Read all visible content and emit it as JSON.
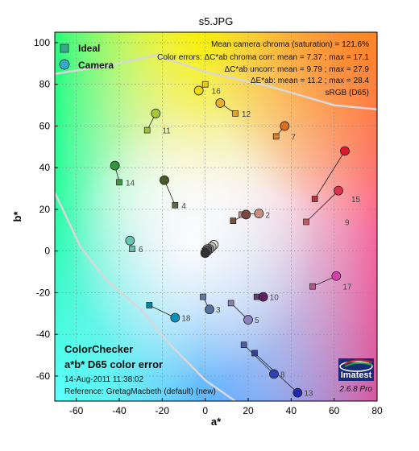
{
  "chart_data": {
    "type": "scatter",
    "title": "s5.JPG",
    "xlabel": "a*",
    "ylabel": "b*",
    "xlim": [
      -70,
      80
    ],
    "ylim": [
      -72,
      105
    ],
    "xticks": [
      -60,
      -40,
      -20,
      0,
      20,
      40,
      60,
      80
    ],
    "yticks": [
      -60,
      -40,
      -20,
      0,
      20,
      40,
      60,
      80,
      100
    ],
    "grid": true,
    "legend": [
      {
        "name": "Ideal",
        "marker": "square"
      },
      {
        "name": "Camera",
        "marker": "circle"
      }
    ],
    "annotations": {
      "line1": "Mean camera chroma (saturation) = 121.6%",
      "line2": "Color errors:  ΔC*ab chroma corr:  mean = 7.37 ;  max = 17.1",
      "line3": "ΔC*ab uncorr:  mean = 9.79 ;  max = 27.9",
      "line4": "ΔE*ab:  mean = 11.2 ;  max = 28.4",
      "line5": "sRGB (D65)"
    },
    "footer": {
      "title": "ColorChecker",
      "subtitle": "a*b* D65 color error",
      "date": "14-Aug-2011 11:38:02",
      "reference": "Reference:  GretagMacbeth (default) (new)"
    },
    "logo_text": "Imatest",
    "version": "2.6.8  Pro",
    "patches": [
      {
        "id": "1",
        "label": "",
        "ideal": [
          13,
          14.5
        ],
        "camera": [
          19,
          17.5
        ],
        "ideal_color": "#735244",
        "camera_color": "#7a4a40"
      },
      {
        "id": "2",
        "label": "2",
        "ideal": [
          17,
          17.5
        ],
        "camera": [
          25,
          18
        ],
        "ideal_color": "#c29682",
        "camera_color": "#c89080"
      },
      {
        "id": "3",
        "label": "3",
        "ideal": [
          -1,
          -22
        ],
        "camera": [
          2,
          -28
        ],
        "ideal_color": "#627a9d",
        "camera_color": "#5070a0"
      },
      {
        "id": "4",
        "label": "4",
        "ideal": [
          -14,
          22
        ],
        "camera": [
          -19,
          34
        ],
        "ideal_color": "#576c43",
        "camera_color": "#485a25"
      },
      {
        "id": "5",
        "label": "5",
        "ideal": [
          12,
          -25
        ],
        "camera": [
          20,
          -33
        ],
        "ideal_color": "#8580b1",
        "camera_color": "#8c80c0"
      },
      {
        "id": "6",
        "label": "6",
        "ideal": [
          -34,
          1
        ],
        "camera": [
          -35,
          5
        ],
        "ideal_color": "#67bdaa",
        "camera_color": "#60c8b0"
      },
      {
        "id": "7",
        "label": "7",
        "ideal": [
          33,
          55
        ],
        "camera": [
          37,
          60
        ],
        "ideal_color": "#d67e2c",
        "camera_color": "#e07018"
      },
      {
        "id": "8",
        "label": "8",
        "ideal": [
          18,
          -45
        ],
        "camera": [
          32,
          -59
        ],
        "ideal_color": "#505ba6",
        "camera_color": "#3040b0"
      },
      {
        "id": "9",
        "label": "9",
        "ideal": [
          47,
          14
        ],
        "camera": [
          62,
          29
        ],
        "ideal_color": "#c15a63",
        "camera_color": "#e03050"
      },
      {
        "id": "10",
        "label": "10",
        "ideal": [
          24,
          -22
        ],
        "camera": [
          27,
          -22
        ],
        "ideal_color": "#5e3c6c",
        "camera_color": "#5a2060"
      },
      {
        "id": "11",
        "label": "11",
        "ideal": [
          -27,
          58
        ],
        "camera": [
          -23,
          66
        ],
        "ideal_color": "#9dbc40",
        "camera_color": "#a8c830"
      },
      {
        "id": "12",
        "label": "12",
        "ideal": [
          14,
          66
        ],
        "camera": [
          7,
          71
        ],
        "ideal_color": "#e0a32e",
        "camera_color": "#e8b020"
      },
      {
        "id": "13",
        "label": "13",
        "ideal": [
          23,
          -49
        ],
        "camera": [
          43,
          -68
        ],
        "ideal_color": "#383d96",
        "camera_color": "#2028b0"
      },
      {
        "id": "14",
        "label": "14",
        "ideal": [
          -40,
          33
        ],
        "camera": [
          -42,
          41
        ],
        "ideal_color": "#469449",
        "camera_color": "#309838"
      },
      {
        "id": "15",
        "label": "15",
        "ideal": [
          51,
          25
        ],
        "camera": [
          65,
          48
        ],
        "ideal_color": "#af363c",
        "camera_color": "#e01828"
      },
      {
        "id": "16",
        "label": "16",
        "ideal": [
          0,
          80
        ],
        "camera": [
          -3,
          77
        ],
        "ideal_color": "#e7c71f",
        "camera_color": "#f0d818"
      },
      {
        "id": "17",
        "label": "17",
        "ideal": [
          50,
          -17
        ],
        "camera": [
          61,
          -12
        ],
        "ideal_color": "#bb5695",
        "camera_color": "#d840b0"
      },
      {
        "id": "18",
        "label": "18",
        "ideal": [
          -26,
          -26
        ],
        "camera": [
          -14,
          -32
        ],
        "ideal_color": "#0885a1",
        "camera_color": "#0890b8"
      },
      {
        "id": "19",
        "label": "",
        "ideal": [
          0,
          0
        ],
        "camera": [
          4,
          3
        ],
        "ideal_color": "#f3f3f2",
        "camera_color": "#f0eeea"
      },
      {
        "id": "20",
        "label": "",
        "ideal": [
          0,
          0
        ],
        "camera": [
          3,
          2
        ],
        "ideal_color": "#c8c8c8",
        "camera_color": "#c8c4c0"
      },
      {
        "id": "21",
        "label": "",
        "ideal": [
          0,
          0
        ],
        "camera": [
          2,
          1
        ],
        "ideal_color": "#a0a0a0",
        "camera_color": "#a09c98"
      },
      {
        "id": "22",
        "label": "",
        "ideal": [
          0,
          0
        ],
        "camera": [
          1,
          1
        ],
        "ideal_color": "#7a7a79",
        "camera_color": "#787470"
      },
      {
        "id": "23",
        "label": "",
        "ideal": [
          0,
          0
        ],
        "camera": [
          1,
          0
        ],
        "ideal_color": "#555555",
        "camera_color": "#545050"
      },
      {
        "id": "24",
        "label": "",
        "ideal": [
          0,
          0
        ],
        "camera": [
          0,
          -1
        ],
        "ideal_color": "#343434",
        "camera_color": "#343030"
      }
    ],
    "gamut_boundary": [
      [
        -70,
        28
      ],
      [
        -58,
        2
      ],
      [
        -46,
        -14
      ],
      [
        -30,
        -28
      ],
      [
        -18,
        -43
      ],
      [
        0,
        -62
      ],
      [
        14,
        -72
      ]
    ],
    "gamut_boundary_top": [
      [
        -70,
        85
      ],
      [
        -45,
        89
      ],
      [
        -23,
        94
      ],
      [
        0,
        86
      ],
      [
        30,
        79
      ],
      [
        60,
        70
      ],
      [
        80,
        68
      ]
    ]
  }
}
